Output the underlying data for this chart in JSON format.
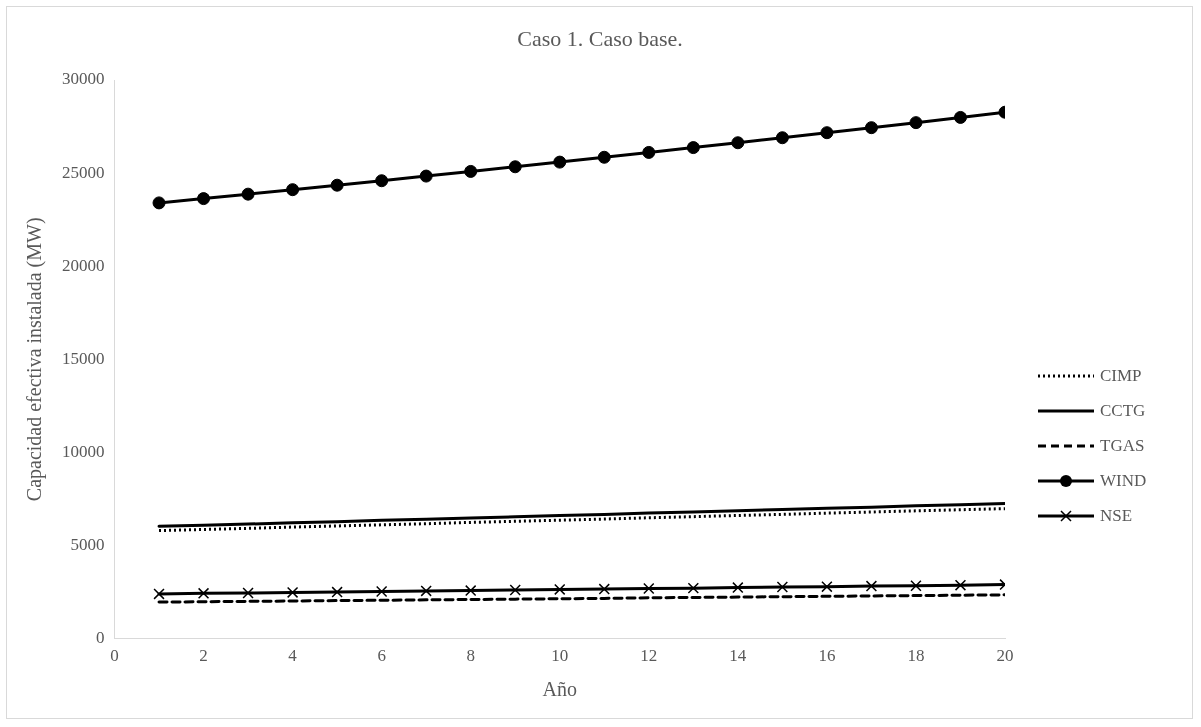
{
  "chart_data": {
    "type": "line",
    "title": "Caso 1. Caso base.",
    "xlabel": "Año",
    "ylabel": "Capacidad efectiva instalada (MW)",
    "x": [
      1,
      2,
      3,
      4,
      5,
      6,
      7,
      8,
      9,
      10,
      11,
      12,
      13,
      14,
      15,
      16,
      17,
      18,
      19,
      20
    ],
    "xlim": [
      0,
      20
    ],
    "xticks": [
      0,
      2,
      4,
      6,
      8,
      10,
      12,
      14,
      16,
      18,
      20
    ],
    "ylim": [
      0,
      30000
    ],
    "yticks": [
      0,
      5000,
      10000,
      15000,
      20000,
      25000,
      30000
    ],
    "grid": false,
    "legend": "right",
    "series": [
      {
        "name": "CIMP",
        "color": "#000000",
        "line_style": "dotted",
        "marker": "none",
        "values": [
          5800,
          5860,
          5920,
          5990,
          6050,
          6110,
          6170,
          6240,
          6300,
          6360,
          6420,
          6490,
          6550,
          6610,
          6670,
          6740,
          6800,
          6860,
          6920,
          6980
        ]
      },
      {
        "name": "CCTG",
        "color": "#000000",
        "line_style": "solid",
        "marker": "none",
        "values": [
          6030,
          6090,
          6150,
          6220,
          6280,
          6350,
          6410,
          6480,
          6540,
          6610,
          6670,
          6740,
          6800,
          6870,
          6930,
          7000,
          7060,
          7130,
          7190,
          7260
        ]
      },
      {
        "name": "TGAS",
        "color": "#000000",
        "line_style": "dashed",
        "marker": "none",
        "values": [
          1960,
          1980,
          2000,
          2020,
          2040,
          2060,
          2080,
          2100,
          2120,
          2140,
          2160,
          2190,
          2210,
          2230,
          2250,
          2270,
          2290,
          2310,
          2330,
          2350
        ]
      },
      {
        "name": "WIND",
        "color": "#000000",
        "line_style": "solid",
        "marker": "circle",
        "values": [
          23400,
          23630,
          23870,
          24110,
          24350,
          24590,
          24840,
          25090,
          25340,
          25590,
          25850,
          26110,
          26370,
          26630,
          26900,
          27170,
          27440,
          27710,
          27990,
          28270
        ]
      },
      {
        "name": "NSE",
        "color": "#000000",
        "line_style": "solid",
        "marker": "cross",
        "values": [
          2400,
          2430,
          2450,
          2480,
          2500,
          2530,
          2560,
          2580,
          2610,
          2640,
          2660,
          2690,
          2710,
          2740,
          2770,
          2790,
          2820,
          2840,
          2870,
          2900
        ]
      }
    ]
  }
}
